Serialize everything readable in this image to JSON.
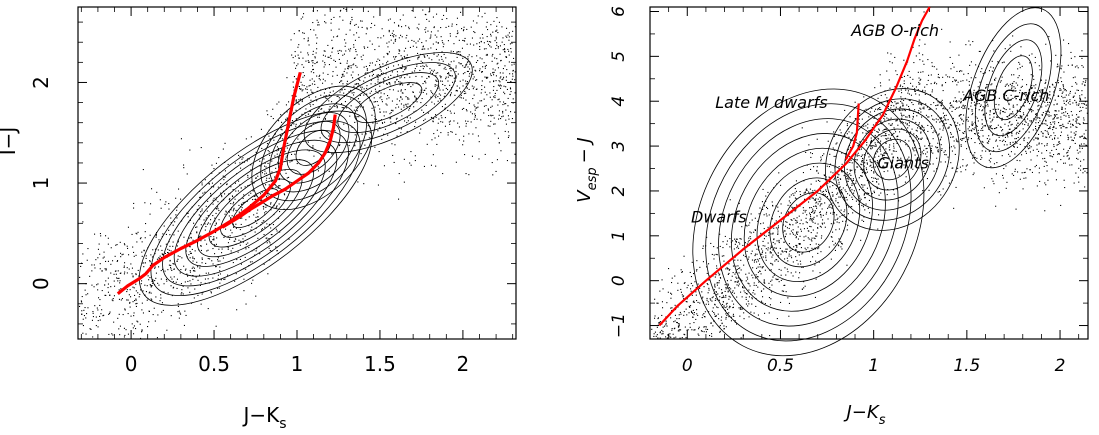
{
  "chart_data": [
    {
      "type": "scatter",
      "title": "",
      "xlabel": "J−K",
      "xlabel_sub": "s",
      "ylabel": "I−J",
      "xlim": [
        -0.32,
        2.32
      ],
      "ylim": [
        -0.55,
        2.75
      ],
      "xticks": [
        {
          "v": 0,
          "label": "0"
        },
        {
          "v": 0.5,
          "label": "0.5"
        },
        {
          "v": 1,
          "label": "1"
        },
        {
          "v": 1.5,
          "label": "1.5"
        },
        {
          "v": 2,
          "label": "2"
        }
      ],
      "yticks": [
        {
          "v": 0,
          "label": "0"
        },
        {
          "v": 1,
          "label": "1"
        },
        {
          "v": 2,
          "label": "2"
        }
      ],
      "grid": false,
      "density_contours": true,
      "line_color": "#ff0000",
      "series": [
        {
          "x": [
            -0.08,
            -0.02,
            0.05,
            0.09,
            0.13,
            0.2,
            0.3,
            0.4,
            0.5,
            0.6,
            0.7,
            0.8,
            0.87,
            0.9,
            0.92,
            0.95,
            0.98,
            1.02
          ],
          "y": [
            -0.1,
            -0.02,
            0.05,
            0.1,
            0.18,
            0.26,
            0.35,
            0.43,
            0.52,
            0.62,
            0.74,
            0.88,
            1.02,
            1.15,
            1.35,
            1.6,
            1.85,
            2.1
          ]
        },
        {
          "x": [
            0.55,
            0.65,
            0.72,
            0.78,
            0.85,
            0.93,
            1.0,
            1.07,
            1.13,
            1.17,
            1.2,
            1.22,
            1.23
          ],
          "y": [
            0.56,
            0.66,
            0.74,
            0.8,
            0.87,
            0.94,
            1.02,
            1.1,
            1.2,
            1.3,
            1.42,
            1.55,
            1.68
          ]
        }
      ]
    },
    {
      "type": "scatter",
      "title": "",
      "xlabel": "J−K",
      "xlabel_sub": "s",
      "ylabel": "V",
      "ylabel_sub": "esp",
      "ylabel_tail": "− J",
      "xlim": [
        -0.2,
        2.15
      ],
      "ylim": [
        -1.3,
        6.1
      ],
      "xticks": [
        {
          "v": 0,
          "label": "0"
        },
        {
          "v": 0.5,
          "label": "0.5"
        },
        {
          "v": 1,
          "label": "1"
        },
        {
          "v": 1.5,
          "label": "1.5"
        },
        {
          "v": 2,
          "label": "2"
        }
      ],
      "yticks": [
        {
          "v": -1,
          "label": "−1"
        },
        {
          "v": 0,
          "label": "0"
        },
        {
          "v": 1,
          "label": "1"
        },
        {
          "v": 2,
          "label": "2"
        },
        {
          "v": 3,
          "label": "3"
        },
        {
          "v": 4,
          "label": "4"
        },
        {
          "v": 5,
          "label": "5"
        },
        {
          "v": 6,
          "label": "6"
        }
      ],
      "grid": false,
      "density_contours": true,
      "line_color": "#ff0000",
      "series": [
        {
          "x": [
            -0.15,
            -0.05,
            0.1,
            0.3,
            0.5,
            0.7,
            0.85,
            0.95,
            1.05,
            1.12,
            1.18,
            1.22,
            1.26,
            1.3
          ],
          "y": [
            -1.0,
            -0.55,
            0.0,
            0.7,
            1.35,
            2.0,
            2.6,
            3.1,
            3.7,
            4.3,
            4.9,
            5.4,
            5.8,
            6.1
          ]
        },
        {
          "x": [
            0.85,
            0.89,
            0.91,
            0.92
          ],
          "y": [
            2.7,
            3.0,
            3.3,
            3.95
          ]
        }
      ],
      "annotations": [
        {
          "text": "AGB O-rich",
          "x": 0.88,
          "y": 5.45
        },
        {
          "text": "AGB C-rich",
          "x": 1.48,
          "y": 4.0
        },
        {
          "text": "Late M dwarfs",
          "x": 0.15,
          "y": 3.85
        },
        {
          "text": "Giants",
          "x": 1.02,
          "y": 2.5
        },
        {
          "text": "Dwarfs",
          "x": 0.02,
          "y": 1.3
        }
      ]
    }
  ]
}
